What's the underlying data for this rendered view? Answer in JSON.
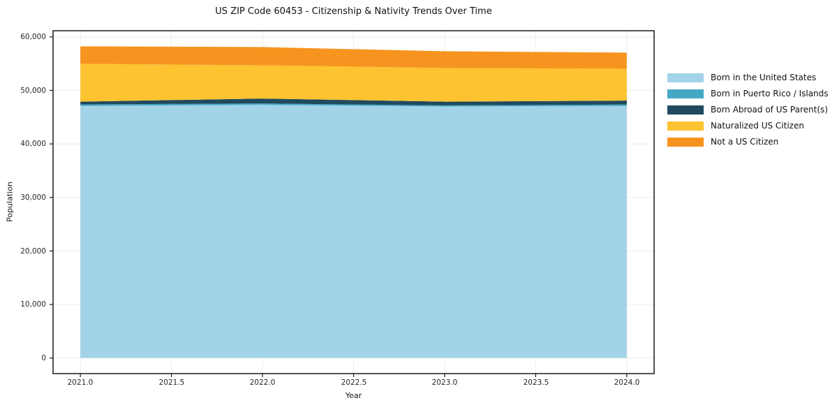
{
  "title": "US ZIP Code 60453 - Citizenship & Nativity Trends Over Time",
  "chart_data": {
    "type": "area",
    "stacked": true,
    "title": "US ZIP Code 60453 - Citizenship & Nativity Trends Over Time",
    "xlabel": "Year",
    "ylabel": "Population",
    "x": [
      2021,
      2022,
      2023,
      2024
    ],
    "series": [
      {
        "name": "Born in the United States",
        "color": "#a3d3e8",
        "values": [
          47100,
          47300,
          47000,
          47100
        ]
      },
      {
        "name": "Born in Puerto Rico / Islands",
        "color": "#45a8c4",
        "values": [
          280,
          260,
          200,
          260
        ]
      },
      {
        "name": "Born Abroad of US Parent(s)",
        "color": "#204a5e",
        "values": [
          520,
          920,
          700,
          740
        ]
      },
      {
        "name": "Naturalized US Citizen",
        "color": "#fdc330",
        "values": [
          7070,
          6220,
          6280,
          5950
        ]
      },
      {
        "name": "Not a US Citizen",
        "color": "#f7941f",
        "values": [
          3270,
          3400,
          3140,
          3010
        ]
      }
    ],
    "totals": [
      58240,
      58100,
      57320,
      57060
    ],
    "xlim": [
      2020.85,
      2024.15
    ],
    "ylim": [
      -2912,
      61152
    ],
    "xtick_values": [
      2021.0,
      2021.5,
      2022.0,
      2022.5,
      2023.0,
      2023.5,
      2024.0
    ],
    "xtick_labels": [
      "2021.0",
      "2021.5",
      "2022.0",
      "2022.5",
      "2023.0",
      "2023.5",
      "2024.0"
    ],
    "ytick_values": [
      0,
      10000,
      20000,
      30000,
      40000,
      50000,
      60000
    ],
    "ytick_labels": [
      "0",
      "10,000",
      "20,000",
      "30,000",
      "40,000",
      "50,000",
      "60,000"
    ],
    "grid": true,
    "legend_position": "right-outside"
  }
}
